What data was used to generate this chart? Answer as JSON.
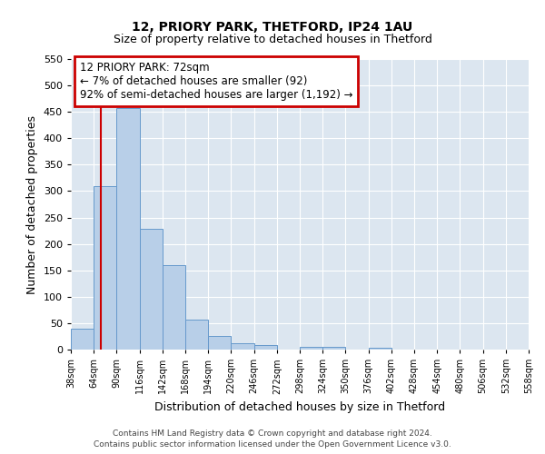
{
  "title": "12, PRIORY PARK, THETFORD, IP24 1AU",
  "subtitle": "Size of property relative to detached houses in Thetford",
  "xlabel": "Distribution of detached houses by size in Thetford",
  "ylabel": "Number of detached properties",
  "bar_values": [
    40,
    310,
    457,
    229,
    160,
    57,
    25,
    12,
    9,
    0,
    5,
    5,
    0,
    3,
    0,
    0,
    0,
    0,
    0,
    0
  ],
  "bin_edges": [
    38,
    64,
    90,
    116,
    142,
    168,
    194,
    220,
    246,
    272,
    298,
    324,
    350,
    376,
    402,
    428,
    454,
    480,
    506,
    532,
    558
  ],
  "bar_color": "#b8cfe8",
  "bar_edgecolor": "#6699cc",
  "ylim": [
    0,
    550
  ],
  "yticks": [
    0,
    50,
    100,
    150,
    200,
    250,
    300,
    350,
    400,
    450,
    500,
    550
  ],
  "vline_x": 72,
  "vline_color": "#cc0000",
  "annotation_title": "12 PRIORY PARK: 72sqm",
  "annotation_line1": "← 7% of detached houses are smaller (92)",
  "annotation_line2": "92% of semi-detached houses are larger (1,192) →",
  "annotation_box_color": "#cc0000",
  "footer_line1": "Contains HM Land Registry data © Crown copyright and database right 2024.",
  "footer_line2": "Contains public sector information licensed under the Open Government Licence v3.0.",
  "tick_labels": [
    "38sqm",
    "64sqm",
    "90sqm",
    "116sqm",
    "142sqm",
    "168sqm",
    "194sqm",
    "220sqm",
    "246sqm",
    "272sqm",
    "298sqm",
    "324sqm",
    "350sqm",
    "376sqm",
    "402sqm",
    "428sqm",
    "454sqm",
    "480sqm",
    "506sqm",
    "532sqm",
    "558sqm"
  ],
  "background_color": "#dce6f0",
  "grid_color": "#ffffff",
  "fig_background": "#ffffff"
}
